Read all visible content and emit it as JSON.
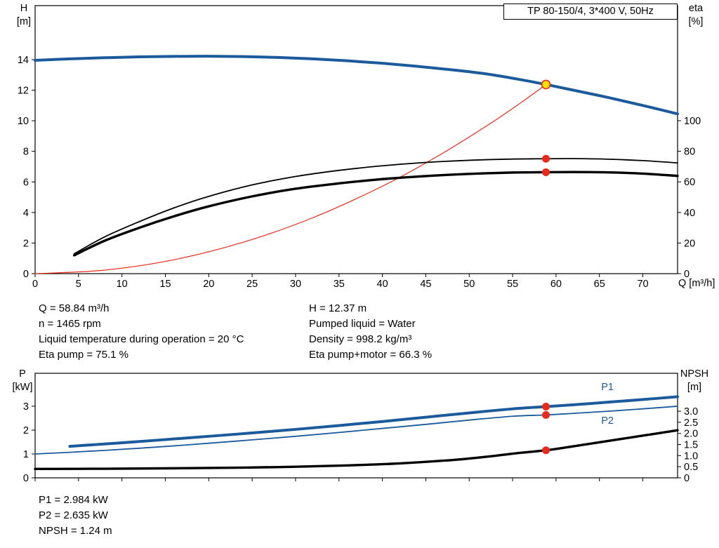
{
  "title_box": "TP 80-150/4, 3*400 V, 50Hz",
  "labels": {
    "h": [
      "H",
      "[m]"
    ],
    "eta": [
      "eta",
      "[%]"
    ],
    "q": "Q [m³/h]",
    "p": [
      "P",
      "[kW]"
    ],
    "npsh": [
      "NPSH",
      "[m]"
    ]
  },
  "info_top": {
    "left": [
      "Q = 58.84 m³/h",
      "n = 1465 rpm",
      "Liquid temperature during operation = 20 °C",
      "Eta pump = 75.1 %"
    ],
    "right": [
      "H = 12.37 m",
      "Pumped liquid = Water",
      "Density = 998.2 kg/m³",
      "Eta pump+motor = 66.3 %"
    ]
  },
  "info_bottom": [
    "P1 = 2.984 kW",
    "P2 = 2.635 kW",
    "NPSH = 1.24 m"
  ],
  "colors": {
    "blue": "#1b5a9b",
    "red": "#e8291c",
    "black": "#000000",
    "yellow": "#ffe000"
  },
  "chart_data": [
    {
      "type": "line",
      "name": "hq-chart",
      "title": "TP 80-150/4, 3*400 V, 50Hz",
      "x_axis": {
        "label": "Q [m³/h]",
        "min": 0,
        "max": 74,
        "ticks": [
          0,
          5,
          10,
          15,
          20,
          25,
          30,
          35,
          40,
          45,
          50,
          55,
          60,
          65,
          70
        ]
      },
      "y_left": {
        "label": "H [m]",
        "min": 0,
        "max": 17.53,
        "ticks": [
          0,
          2,
          4,
          6,
          8,
          10,
          12,
          14
        ]
      },
      "y_right": {
        "label": "eta [%]",
        "min": 0,
        "max": 175.2,
        "ticks": [
          0,
          20,
          40,
          60,
          80,
          100
        ]
      },
      "legend": "none",
      "grid": false,
      "series": [
        {
          "name": "head",
          "axis": "left",
          "color": "blue",
          "width": 4,
          "x": [
            0,
            4,
            8,
            12,
            16,
            20,
            24,
            28,
            32,
            36,
            40,
            44,
            48,
            52,
            56,
            58.84,
            62,
            66,
            70,
            74
          ],
          "y": [
            13.95,
            14.05,
            14.12,
            14.18,
            14.21,
            14.22,
            14.2,
            14.14,
            14.05,
            13.92,
            13.76,
            13.56,
            13.33,
            13.06,
            12.68,
            12.37,
            12.0,
            11.52,
            11.0,
            10.45
          ]
        },
        {
          "name": "system-curve",
          "axis": "left",
          "color": "red",
          "width": 1.2,
          "x": [
            0,
            8,
            16,
            24,
            32,
            40,
            46,
            52,
            56,
            58.84
          ],
          "y": [
            0,
            0.23,
            0.91,
            2.06,
            3.66,
            5.72,
            7.56,
            9.66,
            11.2,
            12.37
          ]
        },
        {
          "name": "eta-pump",
          "axis": "right",
          "color": "black",
          "width": 1.8,
          "x": [
            4.5,
            8,
            12,
            16,
            20,
            25,
            30,
            35,
            40,
            45,
            50,
            55,
            58.84,
            62,
            66,
            70,
            74
          ],
          "y": [
            13,
            24,
            34,
            43,
            50.5,
            58,
            63.5,
            67.5,
            70.5,
            72.7,
            74.1,
            74.9,
            75.1,
            75.2,
            74.8,
            73.9,
            72.4
          ]
        },
        {
          "name": "eta-pump-motor",
          "axis": "right",
          "color": "black",
          "width": 3.4,
          "x": [
            4.5,
            8,
            12,
            16,
            20,
            25,
            30,
            35,
            40,
            45,
            50,
            55,
            58.84,
            62,
            66,
            70,
            74
          ],
          "y": [
            12,
            21.5,
            30,
            37.5,
            44,
            50.5,
            55.5,
            59,
            61.8,
            63.8,
            65.2,
            66.1,
            66.3,
            66.4,
            66.2,
            65.4,
            63.9
          ]
        }
      ],
      "markers": [
        {
          "name": "duty-point-marker",
          "axis": "left",
          "x": 58.84,
          "y": 12.37,
          "r": 6,
          "fill": "yellow",
          "stroke": "red"
        },
        {
          "name": "eta-pump-marker",
          "axis": "right",
          "x": 58.84,
          "y": 75.1,
          "r": 5.5,
          "fill": "red"
        },
        {
          "name": "eta-pump-motor-marker",
          "axis": "right",
          "x": 58.84,
          "y": 66.3,
          "r": 5.5,
          "fill": "red"
        }
      ]
    },
    {
      "type": "line",
      "name": "power-npsh-chart",
      "x_axis": {
        "label": "",
        "min": 0,
        "max": 74,
        "ticks": [
          0,
          5,
          10,
          15,
          20,
          25,
          30,
          35,
          40,
          45,
          50,
          55,
          60,
          65,
          70
        ]
      },
      "y_left": {
        "label": "P [kW]",
        "min": 0,
        "max": 4.38,
        "ticks": [
          0,
          1,
          2,
          3
        ]
      },
      "y_right": {
        "label": "NPSH [m]",
        "min": 0,
        "max": 4.705,
        "ticks": [
          [
            0,
            "0"
          ],
          [
            0.5,
            "0.5"
          ],
          [
            1,
            "1.0"
          ],
          [
            1.5,
            "1.5"
          ],
          [
            2,
            "2.0"
          ],
          [
            2.5,
            "2.5"
          ],
          [
            3,
            "3.0"
          ]
        ]
      },
      "legend": "inline-labels",
      "grid": false,
      "series": [
        {
          "name": "p1",
          "label": "P1",
          "label_at": [
            65.2,
            3.68
          ],
          "axis": "left",
          "color": "blue",
          "width": 4,
          "x": [
            4,
            8,
            12,
            16,
            20,
            25,
            30,
            35,
            40,
            45,
            50,
            55,
            58.84,
            62,
            66,
            70,
            74
          ],
          "y": [
            1.32,
            1.42,
            1.52,
            1.63,
            1.74,
            1.88,
            2.03,
            2.19,
            2.36,
            2.54,
            2.72,
            2.89,
            2.984,
            3.06,
            3.17,
            3.28,
            3.4
          ]
        },
        {
          "name": "p2",
          "label": "P2",
          "label_at": [
            65.2,
            2.26
          ],
          "axis": "left",
          "color": "blue",
          "width": 1.8,
          "x": [
            0,
            4,
            8,
            12,
            16,
            20,
            25,
            30,
            35,
            40,
            45,
            50,
            55,
            58.84,
            62,
            66,
            70,
            74
          ],
          "y": [
            1.0,
            1.07,
            1.15,
            1.24,
            1.34,
            1.45,
            1.59,
            1.74,
            1.9,
            2.07,
            2.24,
            2.42,
            2.58,
            2.635,
            2.7,
            2.79,
            2.89,
            3.0
          ]
        },
        {
          "name": "npsh",
          "axis": "right",
          "color": "black",
          "width": 3.4,
          "x": [
            0,
            8,
            16,
            24,
            30,
            36,
            42,
            48,
            52,
            56,
            58.84,
            62,
            66,
            70,
            74
          ],
          "y": [
            0.4,
            0.41,
            0.43,
            0.46,
            0.5,
            0.56,
            0.65,
            0.8,
            0.95,
            1.13,
            1.24,
            1.42,
            1.66,
            1.9,
            2.14
          ]
        }
      ],
      "markers": [
        {
          "name": "p1-marker",
          "axis": "left",
          "x": 58.84,
          "y": 2.984,
          "r": 5.5,
          "fill": "red"
        },
        {
          "name": "p2-marker",
          "axis": "left",
          "x": 58.84,
          "y": 2.635,
          "r": 5.5,
          "fill": "red"
        },
        {
          "name": "npsh-marker",
          "axis": "right",
          "x": 58.84,
          "y": 1.24,
          "r": 5.5,
          "fill": "red"
        }
      ]
    }
  ]
}
